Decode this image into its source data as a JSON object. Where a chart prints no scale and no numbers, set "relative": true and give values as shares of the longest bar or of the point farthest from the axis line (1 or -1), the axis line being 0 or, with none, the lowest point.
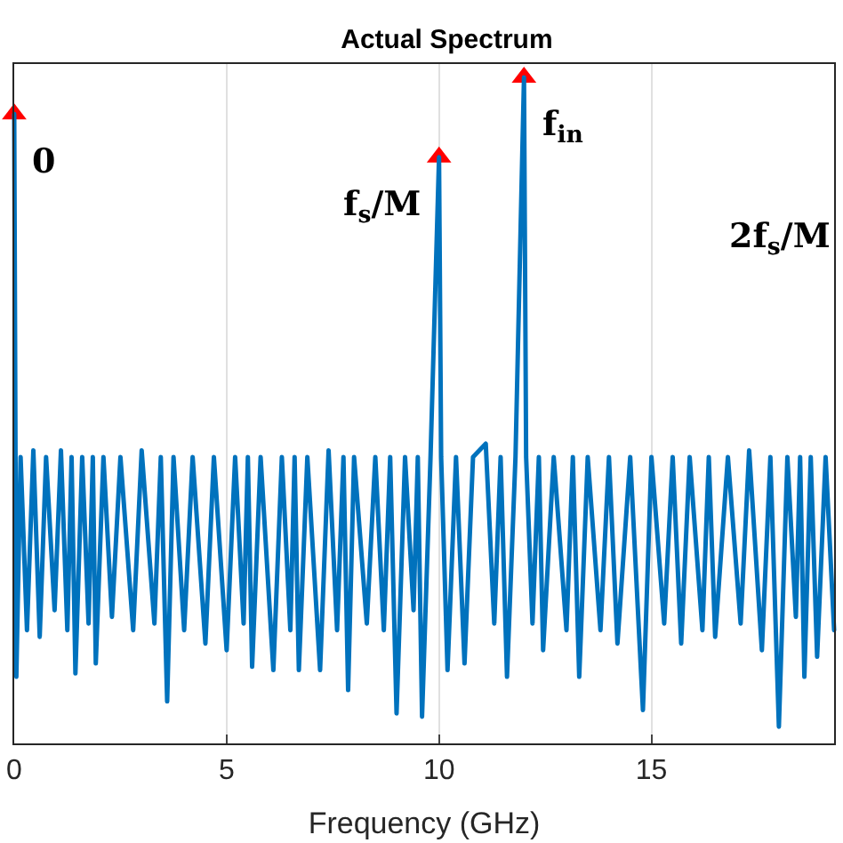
{
  "chart_data": {
    "type": "line",
    "title": "Actual Spectrum",
    "xlabel": "Frequency (GHz)",
    "relative": true,
    "xlim": [
      0,
      19.3
    ],
    "xticks": [
      0,
      5,
      10,
      15
    ],
    "grid": "x",
    "series": [
      {
        "color": "#0072bd",
        "marker": "none",
        "line_style": "solid",
        "x": [
          0,
          0.05,
          0.15,
          0.3,
          0.45,
          0.6,
          0.75,
          0.95,
          1.1,
          1.25,
          1.35,
          1.44,
          1.6,
          1.75,
          1.85,
          1.92,
          2.1,
          2.3,
          2.5,
          2.8,
          3.0,
          3.3,
          3.45,
          3.6,
          3.75,
          4.0,
          4.2,
          4.5,
          4.7,
          5.0,
          5.2,
          5.4,
          5.5,
          5.6,
          5.8,
          6.1,
          6.3,
          6.5,
          6.6,
          6.7,
          6.9,
          7.2,
          7.4,
          7.6,
          7.75,
          7.86,
          8.0,
          8.3,
          8.5,
          8.7,
          8.85,
          9.0,
          9.2,
          9.4,
          9.5,
          9.6,
          9.8,
          10.0,
          10.05,
          10.2,
          10.4,
          10.6,
          10.8,
          11.1,
          11.3,
          11.45,
          11.6,
          11.8,
          12.0,
          12.05,
          12.2,
          12.35,
          12.45,
          12.7,
          13.0,
          13.15,
          13.3,
          13.5,
          13.8,
          14.0,
          14.2,
          14.5,
          14.8,
          15.0,
          15.3,
          15.5,
          15.7,
          15.9,
          16.2,
          16.35,
          16.5,
          16.8,
          17.1,
          17.3,
          17.6,
          17.8,
          18.0,
          18.2,
          18.4,
          18.5,
          18.6,
          18.75,
          18.9,
          19.1,
          19.3
        ],
        "values": [
          0.945,
          0.1,
          0.43,
          0.17,
          0.44,
          0.16,
          0.43,
          0.2,
          0.44,
          0.17,
          0.43,
          0.105,
          0.43,
          0.18,
          0.43,
          0.12,
          0.43,
          0.19,
          0.43,
          0.17,
          0.44,
          0.18,
          0.43,
          0.063,
          0.43,
          0.17,
          0.43,
          0.15,
          0.43,
          0.14,
          0.43,
          0.18,
          0.43,
          0.115,
          0.43,
          0.11,
          0.43,
          0.17,
          0.43,
          0.11,
          0.43,
          0.11,
          0.44,
          0.17,
          0.43,
          0.08,
          0.43,
          0.18,
          0.43,
          0.17,
          0.43,
          0.045,
          0.43,
          0.2,
          0.43,
          0.04,
          0.43,
          0.88,
          0.43,
          0.11,
          0.43,
          0.12,
          0.43,
          0.45,
          0.18,
          0.43,
          0.1,
          0.43,
          1.0,
          0.43,
          0.18,
          0.43,
          0.14,
          0.43,
          0.17,
          0.43,
          0.1,
          0.43,
          0.17,
          0.43,
          0.15,
          0.43,
          0.05,
          0.43,
          0.18,
          0.43,
          0.15,
          0.43,
          0.17,
          0.43,
          0.16,
          0.43,
          0.18,
          0.44,
          0.14,
          0.43,
          0.025,
          0.43,
          0.19,
          0.43,
          0.1,
          0.43,
          0.13,
          0.43,
          0.17
        ]
      },
      {
        "type": "scatter",
        "color": "#ff0000",
        "marker": "triangle",
        "x": [
          0,
          10,
          12
        ],
        "values": [
          0.945,
          0.88,
          1.0
        ]
      }
    ],
    "annotations": [
      {
        "text": "0",
        "x": 0,
        "y": 0.945
      },
      {
        "text": "f$_{s}$/M",
        "x": 10,
        "y": 0.88
      },
      {
        "text": "f$_{in}$",
        "x": 12,
        "y": 1.0
      },
      "2f$_{s}$/M"
    ]
  }
}
